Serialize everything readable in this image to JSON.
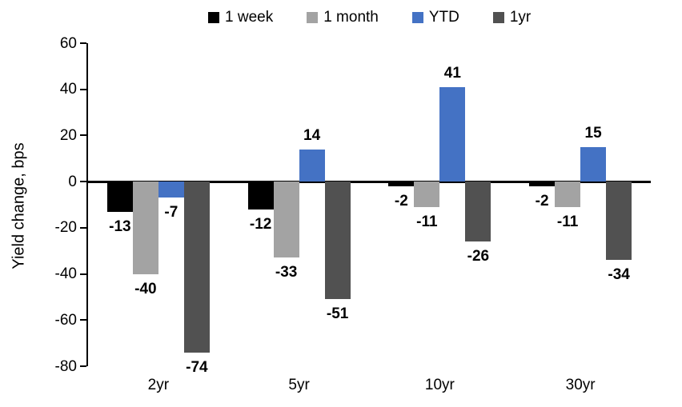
{
  "chart_data": {
    "type": "bar",
    "title": "",
    "xlabel": "",
    "ylabel": "Yield change, bps",
    "categories": [
      "2yr",
      "5yr",
      "10yr",
      "30yr"
    ],
    "series": [
      {
        "name": "1 week",
        "color": "#000000",
        "values": [
          -13,
          -12,
          -2,
          -2
        ]
      },
      {
        "name": "1 month",
        "color": "#A3A3A3",
        "values": [
          -40,
          -33,
          -11,
          -11
        ]
      },
      {
        "name": "YTD",
        "color": "#4472C4",
        "values": [
          -7,
          14,
          41,
          15
        ]
      },
      {
        "name": "1yr",
        "color": "#515151",
        "values": [
          -74,
          -51,
          -26,
          -34
        ]
      }
    ],
    "ylim": [
      -80,
      60
    ],
    "ytick_step": 20,
    "grid": false,
    "legend_position": "top",
    "data_labels": "outside-end"
  }
}
